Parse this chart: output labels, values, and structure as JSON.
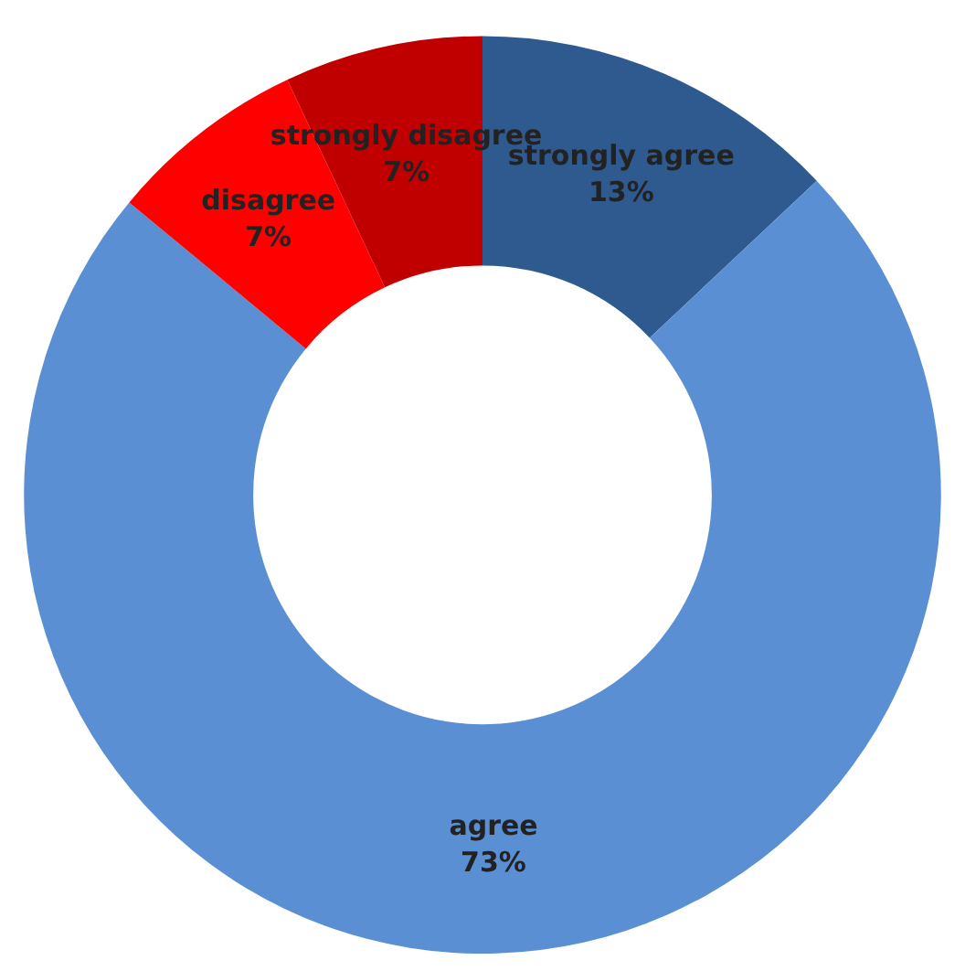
{
  "chart_data": {
    "type": "donut",
    "categories": [
      "strongly agree",
      "agree",
      "disagree",
      "strongly disagree"
    ],
    "values": [
      13,
      73,
      7,
      7
    ],
    "value_labels": [
      "13%",
      "73%",
      "7%",
      "7%"
    ],
    "colors": [
      "#2f5a8f",
      "#5a8fd4",
      "#ff0000",
      "#c00000"
    ],
    "legend": false
  }
}
